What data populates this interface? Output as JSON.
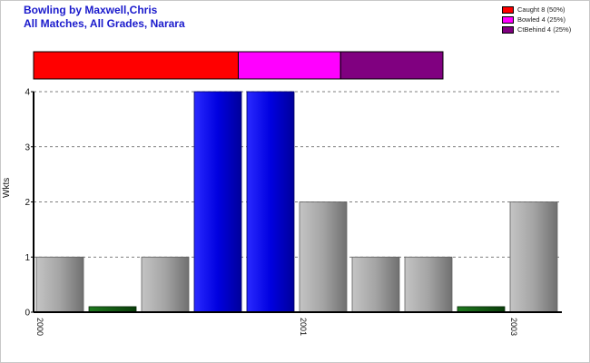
{
  "header": {
    "title_line1": "Bowling by Maxwell,Chris",
    "title_line2": "All Matches, All Grades, Narara"
  },
  "legend": [
    {
      "label": "Caught 8 (50%)",
      "color": "#ff0000"
    },
    {
      "label": "Bowled 4 (25%)",
      "color": "#ff00ff"
    },
    {
      "label": "CtBehind 4 (25%)",
      "color": "#800080"
    }
  ],
  "chart_data": {
    "type": "bar",
    "ylabel": "Wkts",
    "xlabel": "",
    "ylim": [
      0,
      4
    ],
    "yticks": [
      0,
      1,
      2,
      3,
      4
    ],
    "grid": true,
    "legend_position": "top-right",
    "categories": [
      "2000",
      "",
      "",
      "",
      "",
      "2001",
      "",
      "",
      "",
      "2003"
    ],
    "values": [
      1,
      0.1,
      1,
      4,
      4,
      2,
      1,
      1,
      0.1,
      2
    ],
    "bar_styles": [
      "gray",
      "green",
      "gray",
      "blue",
      "blue",
      "gray",
      "gray",
      "gray",
      "green",
      "gray"
    ],
    "x_tick_labels": [
      {
        "label": "2000",
        "bar_index": 0
      },
      {
        "label": "2001",
        "bar_index": 5
      },
      {
        "label": "2003",
        "bar_index": 9
      }
    ],
    "dismissal_breakdown": [
      {
        "name": "Caught",
        "value": 8,
        "color": "#ff0000"
      },
      {
        "name": "Bowled",
        "value": 4,
        "color": "#ff00ff"
      },
      {
        "name": "CtBehind",
        "value": 4,
        "color": "#800080"
      }
    ]
  }
}
